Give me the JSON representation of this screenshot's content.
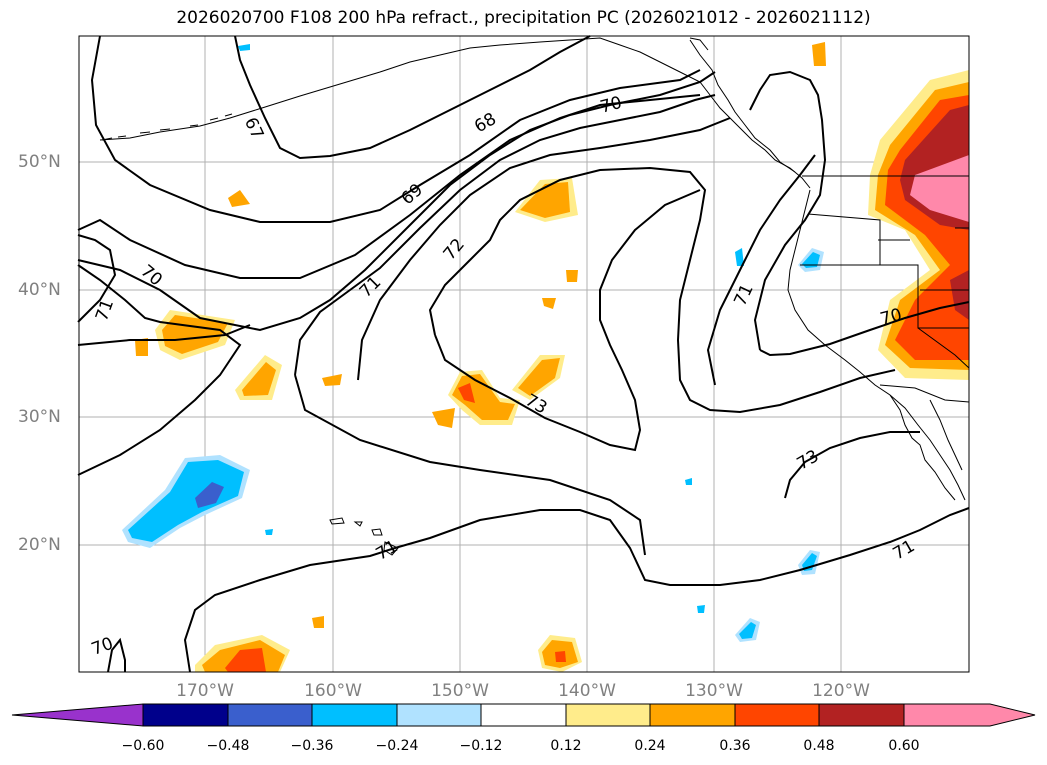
{
  "title": "2026020700 F108 200 hPa refract., precipitation PC (2026021012 - 2026021112)",
  "map": {
    "lat_labels": [
      "50°N",
      "40°N",
      "30°N",
      "20°N"
    ],
    "lon_labels": [
      "170°W",
      "160°W",
      "150°W",
      "140°W",
      "130°W",
      "120°W"
    ],
    "contour_labels": [
      "67",
      "68",
      "69",
      "70",
      "70",
      "70",
      "70",
      "71",
      "71",
      "71",
      "71",
      "72",
      "73",
      "73",
      "71"
    ]
  },
  "colorbar": {
    "ticks": [
      "−0.60",
      "−0.48",
      "−0.36",
      "−0.24",
      "−0.12",
      "0.12",
      "0.24",
      "0.36",
      "0.48",
      "0.60"
    ],
    "colors": [
      "#9932cc",
      "#00008b",
      "#3a5fcd",
      "#00bfff",
      "#b0e2ff",
      "#ffffff",
      "#ffec8b",
      "#ffa500",
      "#ff4500",
      "#b22222",
      "#ff88aa"
    ]
  }
}
